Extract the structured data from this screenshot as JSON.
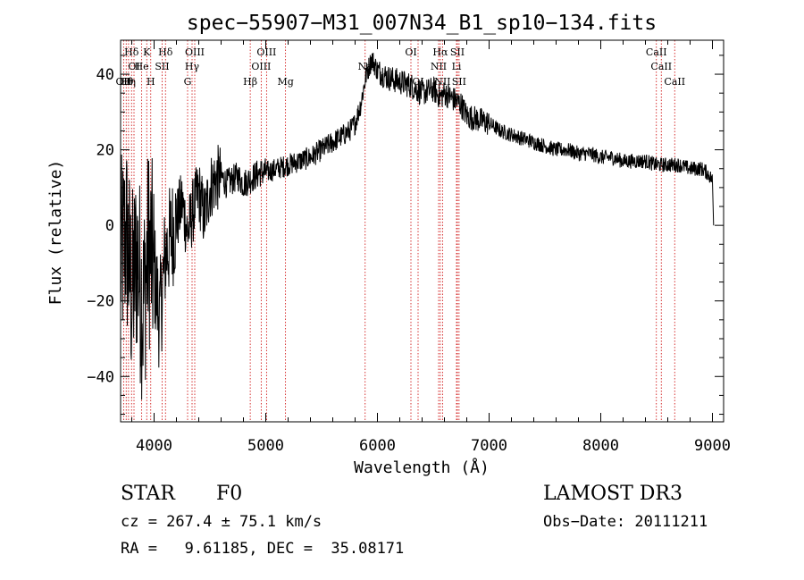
{
  "chart_data": {
    "type": "line",
    "title": "spec−55907−M31_007N34_B1_sp10−134.fits",
    "xlabel": "Wavelength (Å)",
    "ylabel": "Flux (relative)",
    "xlim": [
      3700,
      9100
    ],
    "ylim": [
      -52,
      49
    ],
    "x_ticks": [
      4000,
      5000,
      6000,
      7000,
      8000,
      9000
    ],
    "x_tick_labels": [
      "4000",
      "5000",
      "6000",
      "7000",
      "8000",
      "9000"
    ],
    "y_ticks": [
      -40,
      -20,
      0,
      20,
      40
    ],
    "y_tick_labels": [
      "−40",
      "−20",
      "0",
      "20",
      "40"
    ],
    "series": [
      {
        "name": "flux",
        "x": [
          3700,
          3750,
          3800,
          3850,
          3900,
          3950,
          4000,
          4050,
          4100,
          4150,
          4200,
          4250,
          4300,
          4350,
          4400,
          4450,
          4500,
          4550,
          4600,
          4650,
          4700,
          4750,
          4800,
          4850,
          4900,
          4950,
          5000,
          5100,
          5200,
          5300,
          5400,
          5500,
          5600,
          5700,
          5750,
          5800,
          5850,
          5900,
          5950,
          6000,
          6100,
          6200,
          6300,
          6400,
          6500,
          6563,
          6600,
          6700,
          6750,
          6800,
          6900,
          7000,
          7100,
          7200,
          7300,
          7400,
          7500,
          7600,
          7700,
          7800,
          7900,
          8000,
          8100,
          8200,
          8300,
          8400,
          8500,
          8600,
          8700,
          8800,
          8900,
          8950,
          9000,
          9010
        ],
        "y": [
          -10,
          -2,
          -18,
          -8,
          -22,
          -5,
          -12,
          -25,
          -8,
          -3,
          1,
          6,
          -2,
          4,
          9,
          2,
          10,
          12,
          13,
          11,
          12,
          13,
          11,
          12,
          13,
          14,
          14,
          15,
          16,
          17,
          18,
          20,
          22,
          24,
          25,
          27,
          32,
          40,
          44,
          41,
          39,
          38,
          37,
          35,
          36,
          34,
          35,
          33,
          32,
          29,
          28,
          27,
          25,
          24,
          23,
          22,
          21,
          20,
          20,
          19,
          19,
          18,
          18,
          17,
          17,
          17,
          16,
          16,
          16,
          15,
          15,
          14,
          12,
          0
        ]
      }
    ],
    "line_markers": [
      {
        "wave": 3727,
        "label": "OII",
        "row": 3
      },
      {
        "wave": 3750,
        "label": "Hθ",
        "row": 3
      },
      {
        "wave": 3771,
        "label": "Hη",
        "row": 3
      },
      {
        "wave": 3798,
        "label": "Hδ",
        "row": 1
      },
      {
        "wave": 3820,
        "label": "OI",
        "row": 2
      },
      {
        "wave": 3889,
        "label": "He",
        "row": 2
      },
      {
        "wave": 3934,
        "label": "K",
        "row": 1
      },
      {
        "wave": 3970,
        "label": "H",
        "row": 3
      },
      {
        "wave": 4072,
        "label": "SII",
        "row": 2
      },
      {
        "wave": 4102,
        "label": "Hδ",
        "row": 1
      },
      {
        "wave": 4300,
        "label": "G",
        "row": 3
      },
      {
        "wave": 4340,
        "label": "Hγ",
        "row": 2
      },
      {
        "wave": 4364,
        "label": "OIII",
        "row": 1
      },
      {
        "wave": 4861,
        "label": "Hβ",
        "row": 3
      },
      {
        "wave": 4959,
        "label": "OIII",
        "row": 2
      },
      {
        "wave": 5007,
        "label": "OIII",
        "row": 1
      },
      {
        "wave": 5177,
        "label": "Mg",
        "row": 3
      },
      {
        "wave": 5890,
        "label": "Na",
        "row": 2
      },
      {
        "wave": 6300,
        "label": "OI",
        "row": 1
      },
      {
        "wave": 6364,
        "label": "OI",
        "row": 3
      },
      {
        "wave": 6548,
        "label": "NII",
        "row": 2
      },
      {
        "wave": 6563,
        "label": "Hα",
        "row": 1
      },
      {
        "wave": 6583,
        "label": "NII",
        "row": 3
      },
      {
        "wave": 6708,
        "label": "Li",
        "row": 2
      },
      {
        "wave": 6716,
        "label": "SII",
        "row": 1
      },
      {
        "wave": 6731,
        "label": "SII",
        "row": 3
      },
      {
        "wave": 8498,
        "label": "CaII",
        "row": 1
      },
      {
        "wave": 8542,
        "label": "CaII",
        "row": 2
      },
      {
        "wave": 8662,
        "label": "CaII",
        "row": 3
      }
    ]
  },
  "info": {
    "classification": "STAR",
    "subclass": "F0",
    "survey": "LAMOST DR3",
    "cz": "cz = 267.4 ± 75.1 km/s",
    "obs_date": "Obs−Date: 20111211",
    "radec": "RA =   9.61185, DEC =  35.08171"
  },
  "colors": {
    "marker": "#cc0000",
    "spectrum": "#000000",
    "axes": "#000000"
  }
}
